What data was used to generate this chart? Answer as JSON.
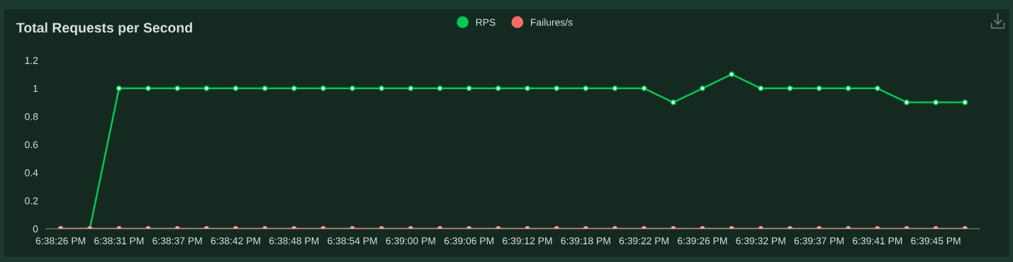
{
  "chart_data": {
    "type": "line",
    "title": "Total Requests per Second",
    "categories": [
      "6:38:26 PM",
      null,
      "6:38:31 PM",
      null,
      "6:38:37 PM",
      null,
      "6:38:42 PM",
      null,
      "6:38:48 PM",
      null,
      "6:38:54 PM",
      null,
      "6:39:00 PM",
      null,
      "6:39:06 PM",
      null,
      "6:39:12 PM",
      null,
      "6:39:18 PM",
      null,
      "6:39:22 PM",
      null,
      "6:39:26 PM",
      null,
      "6:39:32 PM",
      null,
      "6:39:37 PM",
      null,
      "6:39:41 PM",
      null,
      "6:39:45 PM",
      null
    ],
    "series": [
      {
        "name": "RPS",
        "color": "#00c853",
        "values": [
          0,
          0,
          1,
          1,
          1,
          1,
          1,
          1,
          1,
          1,
          1,
          1,
          1,
          1,
          1,
          1,
          1,
          1,
          1,
          1,
          1,
          0.9,
          1,
          1.1,
          1,
          1,
          1,
          1,
          1,
          0.9,
          0.9,
          0.9
        ]
      },
      {
        "name": "Failures/s",
        "color": "#ff6b6b",
        "values": [
          0,
          0,
          0,
          0,
          0,
          0,
          0,
          0,
          0,
          0,
          0,
          0,
          0,
          0,
          0,
          0,
          0,
          0,
          0,
          0,
          0,
          0,
          0,
          0,
          0,
          0,
          0,
          0,
          0,
          0,
          0,
          0
        ]
      }
    ],
    "ylim": [
      0,
      1.2
    ],
    "yticks": [
      0,
      0.2,
      0.4,
      0.6,
      0.8,
      1,
      1.2
    ],
    "grid": false,
    "legend": "top",
    "marker": "circle",
    "line_style": "solid"
  }
}
